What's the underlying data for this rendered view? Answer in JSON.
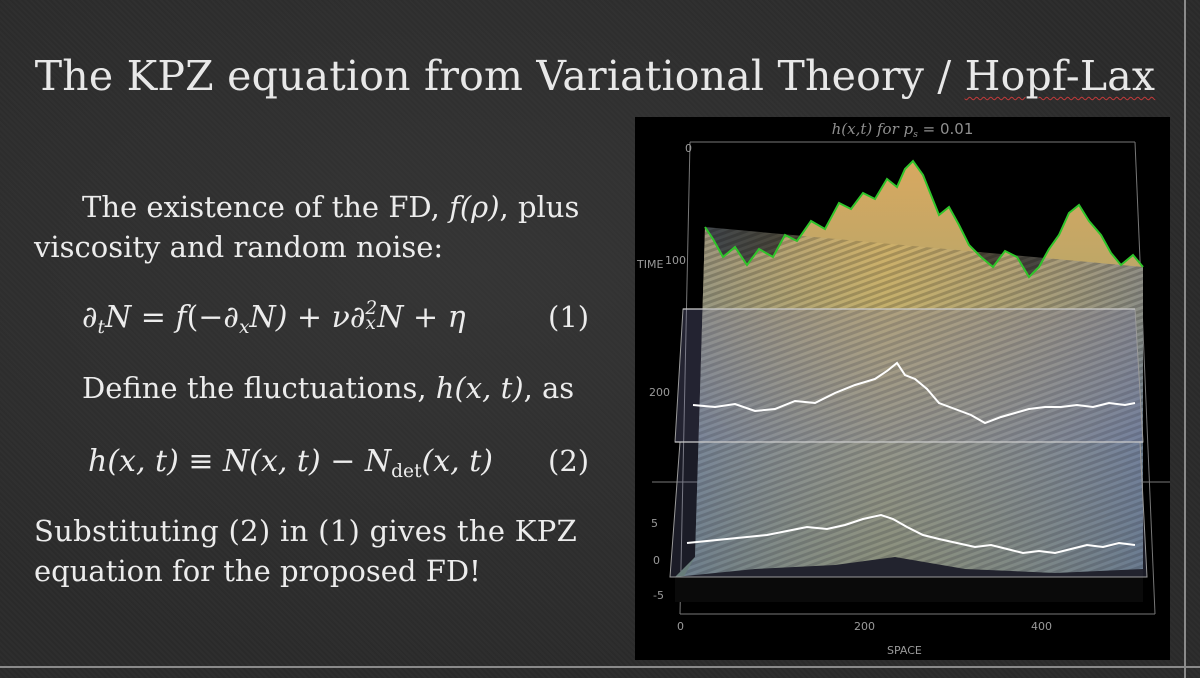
{
  "slide": {
    "title_main": "The KPZ equation from Variational Theory / ",
    "title_link": "Hopf-Lax",
    "para1_line1_a": "The existence of the FD, ",
    "para1_fd": "f(ρ)",
    "para1_line1_b": ", plus",
    "para1_line2": "viscosity and random noise:",
    "eq1_lhs": "∂",
    "eq1_lhs_sub": "t",
    "eq1_N": "N = ",
    "eq1_f": "f",
    "eq1_mid": "(−∂",
    "eq1_mid_sub": "x",
    "eq1_mid2": "N) + ",
    "eq1_nu": "ν∂",
    "eq1_nu_sup": "2",
    "eq1_nu_sub": "x",
    "eq1_end": "N + η",
    "eq1_num": "(1)",
    "para2_a": "Define the fluctuations, ",
    "para2_h": "h(x, t)",
    "para2_b": ", as",
    "eq2_lhs": "h(x, t) ≡ N(x, t) − N",
    "eq2_sub": "det",
    "eq2_rhs": "(x, t)",
    "eq2_num": "(2)",
    "para3_line1": "Substituting (2) in (1) gives the KPZ",
    "para3_line2": "equation for the proposed FD!"
  },
  "plot": {
    "title_text": "h(x,t) for p",
    "title_sub": "s",
    "title_val": " = 0.01",
    "axis_time_label": "TIME",
    "axis_space_label": "SPACE",
    "time_ticks": [
      "0",
      "100",
      "200"
    ],
    "space_ticks": [
      "0",
      "200",
      "400"
    ],
    "h_ticks": [
      "5",
      "0",
      "-5"
    ],
    "colors": {
      "ridge": "#2fc42a",
      "slice_line": "#ffffff",
      "plane": "#7c7fb0"
    }
  }
}
